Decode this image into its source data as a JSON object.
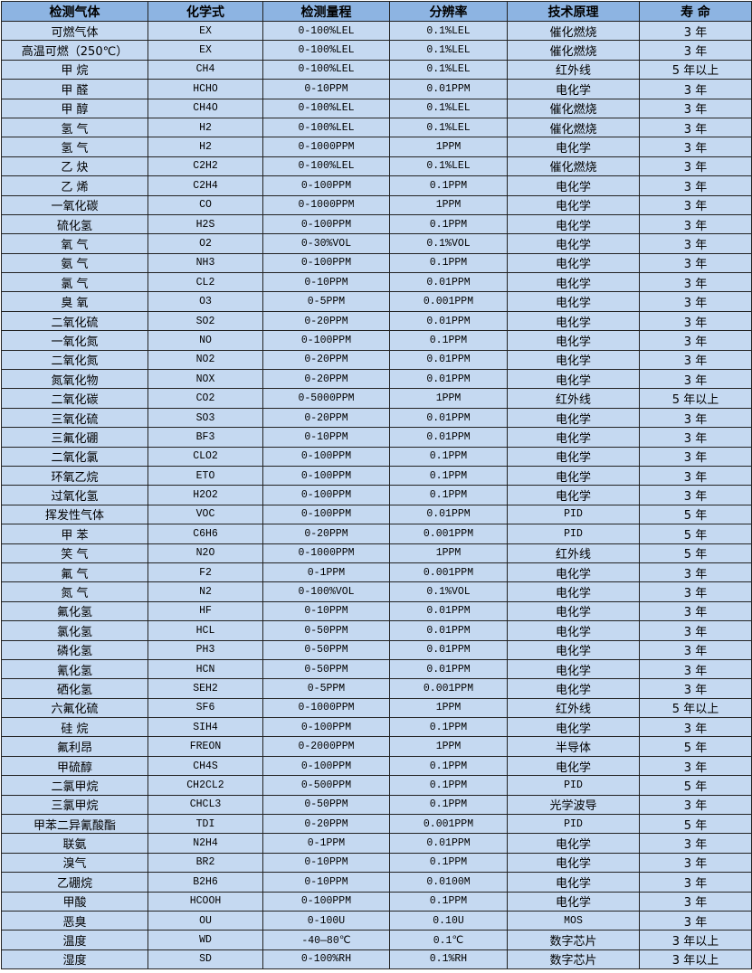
{
  "headers": [
    "检测气体",
    "化学式",
    "检测量程",
    "分辨率",
    "技术原理",
    "寿 命"
  ],
  "rows": [
    [
      "可燃气体",
      "EX",
      "0-100%LEL",
      "0.1%LEL",
      "催化燃烧",
      "3 年"
    ],
    [
      "高温可燃（250℃）",
      "EX",
      "0-100%LEL",
      "0.1%LEL",
      "催化燃烧",
      "3 年"
    ],
    [
      "甲 烷",
      "CH4",
      "0-100%LEL",
      "0.1%LEL",
      "红外线",
      "5 年以上"
    ],
    [
      "甲 醛",
      "HCHO",
      "0-10PPM",
      "0.01PPM",
      "电化学",
      "3 年"
    ],
    [
      "甲 醇",
      "CH4O",
      "0-100%LEL",
      "0.1%LEL",
      "催化燃烧",
      "3 年"
    ],
    [
      "氢 气",
      "H2",
      "0-100%LEL",
      "0.1%LEL",
      "催化燃烧",
      "3 年"
    ],
    [
      "氢 气",
      "H2",
      "0-1000PPM",
      "1PPM",
      "电化学",
      "3 年"
    ],
    [
      "乙 炔",
      "C2H2",
      "0-100%LEL",
      "0.1%LEL",
      "催化燃烧",
      "3 年"
    ],
    [
      "乙 烯",
      "C2H4",
      "0-100PPM",
      "0.1PPM",
      "电化学",
      "3 年"
    ],
    [
      "一氧化碳",
      "CO",
      "0-1000PPM",
      "1PPM",
      "电化学",
      "3 年"
    ],
    [
      "硫化氢",
      "H2S",
      "0-100PPM",
      "0.1PPM",
      "电化学",
      "3 年"
    ],
    [
      "氧 气",
      "O2",
      "0-30%VOL",
      "0.1%VOL",
      "电化学",
      "3 年"
    ],
    [
      "氨 气",
      "NH3",
      "0-100PPM",
      "0.1PPM",
      "电化学",
      "3 年"
    ],
    [
      "氯 气",
      "CL2",
      "0-10PPM",
      "0.01PPM",
      "电化学",
      "3 年"
    ],
    [
      "臭 氧",
      "O3",
      "0-5PPM",
      "0.001PPM",
      "电化学",
      "3 年"
    ],
    [
      "二氧化硫",
      "SO2",
      "0-20PPM",
      "0.01PPM",
      "电化学",
      "3 年"
    ],
    [
      "一氧化氮",
      "NO",
      "0-100PPM",
      "0.1PPM",
      "电化学",
      "3 年"
    ],
    [
      "二氧化氮",
      "NO2",
      "0-20PPM",
      "0.01PPM",
      "电化学",
      "3 年"
    ],
    [
      "氮氧化物",
      "NOX",
      "0-20PPM",
      "0.01PPM",
      "电化学",
      "3 年"
    ],
    [
      "二氧化碳",
      "CO2",
      "0-5000PPM",
      "1PPM",
      "红外线",
      "5 年以上"
    ],
    [
      "三氧化硫",
      "SO3",
      "0-20PPM",
      "0.01PPM",
      "电化学",
      "3 年"
    ],
    [
      "三氟化硼",
      "BF3",
      "0-10PPM",
      "0.01PPM",
      "电化学",
      "3 年"
    ],
    [
      "二氧化氯",
      "CLO2",
      "0-100PPM",
      "0.1PPM",
      "电化学",
      "3 年"
    ],
    [
      "环氧乙烷",
      "ETO",
      "0-100PPM",
      "0.1PPM",
      "电化学",
      "3 年"
    ],
    [
      "过氧化氢",
      "H2O2",
      "0-100PPM",
      "0.1PPM",
      "电化学",
      "3 年"
    ],
    [
      "挥发性气体",
      "VOC",
      "0-100PPM",
      "0.01PPM",
      "PID",
      "5 年"
    ],
    [
      "甲 苯",
      "C6H6",
      "0-20PPM",
      "0.001PPM",
      "PID",
      "5 年"
    ],
    [
      "笑 气",
      "N2O",
      "0-1000PPM",
      "1PPM",
      "红外线",
      "5 年"
    ],
    [
      "氟 气",
      "F2",
      "0-1PPM",
      "0.001PPM",
      "电化学",
      "3 年"
    ],
    [
      "氮 气",
      "N2",
      "0-100%VOL",
      "0.1%VOL",
      "电化学",
      "3 年"
    ],
    [
      "氟化氢",
      "HF",
      "0-10PPM",
      "0.01PPM",
      "电化学",
      "3 年"
    ],
    [
      "氯化氢",
      "HCL",
      "0-50PPM",
      "0.01PPM",
      "电化学",
      "3 年"
    ],
    [
      "磷化氢",
      "PH3",
      "0-50PPM",
      "0.01PPM",
      "电化学",
      "3 年"
    ],
    [
      "氰化氢",
      "HCN",
      "0-50PPM",
      "0.01PPM",
      "电化学",
      "3 年"
    ],
    [
      "硒化氢",
      "SEH2",
      "0-5PPM",
      "0.001PPM",
      "电化学",
      "3 年"
    ],
    [
      "六氟化硫",
      "SF6",
      "0-1000PPM",
      "1PPM",
      "红外线",
      "5 年以上"
    ],
    [
      "硅 烷",
      "SIH4",
      "0-100PPM",
      "0.1PPM",
      "电化学",
      "3 年"
    ],
    [
      "氟利昂",
      "FREON",
      "0-2000PPM",
      "1PPM",
      "半导体",
      "5 年"
    ],
    [
      "甲硫醇",
      "CH4S",
      "0-100PPM",
      "0.1PPM",
      "电化学",
      "3 年"
    ],
    [
      "二氯甲烷",
      "CH2CL2",
      "0-500PPM",
      "0.1PPM",
      "PID",
      "5 年"
    ],
    [
      "三氯甲烷",
      "CHCL3",
      "0-50PPM",
      "0.1PPM",
      "光学波导",
      "3 年"
    ],
    [
      "甲苯二异氰酸酯",
      "TDI",
      "0-20PPM",
      "0.001PPM",
      "PID",
      "5 年"
    ],
    [
      "联氨",
      "N2H4",
      "0-1PPM",
      "0.01PPM",
      "电化学",
      "3 年"
    ],
    [
      "溴气",
      "BR2",
      "0-10PPM",
      "0.1PPM",
      "电化学",
      "3 年"
    ],
    [
      "乙硼烷",
      "B2H6",
      "0-10PPM",
      "0.0100M",
      "电化学",
      "3 年"
    ],
    [
      "甲酸",
      "HCOOH",
      "0-100PPM",
      "0.1PPM",
      "电化学",
      "3 年"
    ],
    [
      "恶臭",
      "OU",
      "0-100U",
      "0.10U",
      "MOS",
      "3 年"
    ],
    [
      "温度",
      "WD",
      "-40—80℃",
      "0.1℃",
      "数字芯片",
      "3 年以上"
    ],
    [
      "湿度",
      "SD",
      "0-100%RH",
      "0.1%RH",
      "数字芯片",
      "3 年以上"
    ]
  ]
}
